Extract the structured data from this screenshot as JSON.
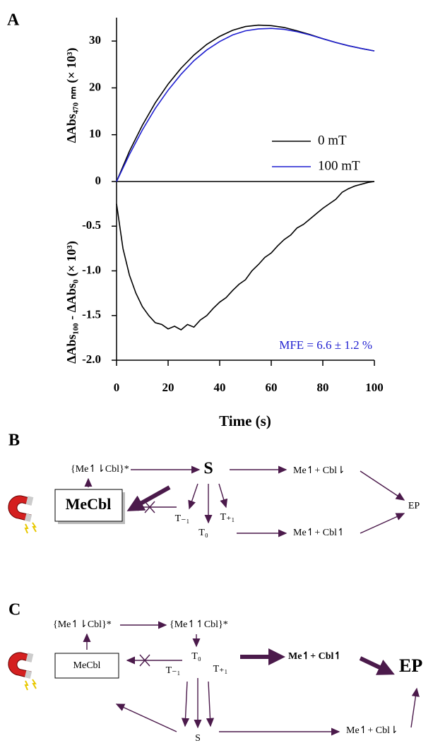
{
  "chart_data": [
    {
      "type": "line",
      "panel_label": "A",
      "ylabel": "ΔAbs₄₇₀ ₙₘ (× 10³)",
      "x": [
        0,
        5,
        10,
        15,
        20,
        25,
        30,
        35,
        40,
        45,
        50,
        55,
        60,
        65,
        70,
        75,
        80,
        85,
        90,
        95,
        100
      ],
      "series": [
        {
          "name": "0 mT",
          "color": "#000000",
          "values": [
            0,
            6.5,
            12,
            16.8,
            20.8,
            24.2,
            27,
            29.3,
            31,
            32.3,
            33.1,
            33.4,
            33.3,
            32.9,
            32.2,
            31.4,
            30.5,
            29.7,
            29,
            28.4,
            27.9
          ]
        },
        {
          "name": "100 mT",
          "color": "#1f1fd0",
          "values": [
            0,
            5.8,
            11,
            15.6,
            19.5,
            22.9,
            25.8,
            28.1,
            29.9,
            31.3,
            32.2,
            32.6,
            32.7,
            32.5,
            32,
            31.3,
            30.5,
            29.7,
            29,
            28.4,
            27.9
          ]
        }
      ],
      "xlim": [
        0,
        100
      ],
      "ylim": [
        0,
        35
      ],
      "yticks": [
        0,
        10,
        20,
        30
      ],
      "legend": "right"
    },
    {
      "type": "line",
      "xlabel": "Time (s)",
      "ylabel": "ΔAbs₁₀₀ - ΔAbs₀ (× 10³)",
      "x": [
        0,
        2.5,
        5,
        7.5,
        10,
        12.5,
        15,
        17.5,
        20,
        22.5,
        25,
        27.5,
        30,
        32.5,
        35,
        37.5,
        40,
        42.5,
        45,
        47.5,
        50,
        52.5,
        55,
        57.5,
        60,
        62.5,
        65,
        67.5,
        70,
        72.5,
        75,
        77.5,
        80,
        82.5,
        85,
        87.5,
        90,
        92.5,
        95,
        97.5,
        100
      ],
      "series": [
        {
          "color": "#000000",
          "values": [
            -0.25,
            -0.75,
            -1.05,
            -1.25,
            -1.4,
            -1.5,
            -1.58,
            -1.6,
            -1.65,
            -1.62,
            -1.66,
            -1.6,
            -1.63,
            -1.55,
            -1.5,
            -1.42,
            -1.35,
            -1.3,
            -1.22,
            -1.15,
            -1.1,
            -1.0,
            -0.93,
            -0.85,
            -0.8,
            -0.72,
            -0.65,
            -0.6,
            -0.52,
            -0.48,
            -0.42,
            -0.36,
            -0.3,
            -0.25,
            -0.2,
            -0.12,
            -0.08,
            -0.05,
            -0.03,
            -0.01,
            0
          ]
        }
      ],
      "xlim": [
        0,
        100
      ],
      "ylim": [
        -2.0,
        0
      ],
      "yticks": [
        -0.5,
        {
          "value": -1.0,
          "label": "-1.0"
        },
        -1.5,
        {
          "value": -2.0,
          "label": "-2.0"
        }
      ],
      "xticks": [
        0,
        20,
        40,
        60,
        80,
        100
      ],
      "annotation": "MFE = 6.6 ± 1.2 %",
      "annotation_color": "#1f1fd0"
    }
  ],
  "diagram_b": {
    "label": "B",
    "excited": "{Me↿⇂Cbl}*",
    "singlet": "S",
    "pair_top": "Me↿+ Cbl⇂",
    "product": "EP",
    "ground": "MeCbl",
    "t_minus": "T₋₁",
    "t_zero": "T₀",
    "t_plus": "T₊₁",
    "pair_bottom": "Me↿+ Cbl↿"
  },
  "diagram_c": {
    "label": "C",
    "excited_1": "{Me↿⇂Cbl}*",
    "excited_2": "{Me↿↿Cbl}*",
    "ground": "MeCbl",
    "t_zero": "T₀",
    "t_minus": "T₋₁",
    "t_plus": "T₊₁",
    "pair_top": "Me↿+ Cbl↿",
    "product": "EP",
    "singlet": "S",
    "pair_bottom": "Me↿+ Cbl⇂"
  }
}
